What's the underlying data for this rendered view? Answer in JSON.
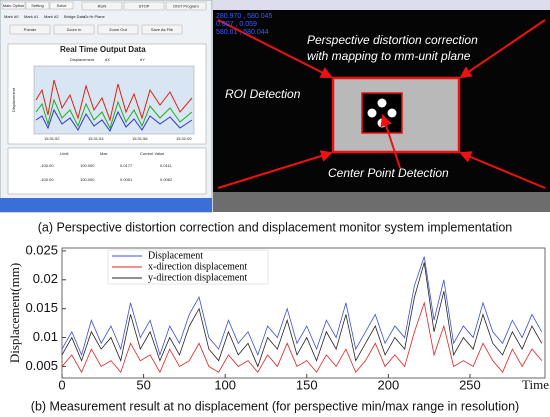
{
  "screenshot": {
    "tabs": [
      "Main Option",
      "Setting",
      "Solve"
    ],
    "buttons": [
      "RUN",
      "STOP",
      "DIST Program"
    ],
    "subtabs": [
      "Mark #0",
      "Mark #1",
      "Mark #2",
      "Bridge Data",
      "Gr.Hr.Plane"
    ],
    "tools": [
      "Pointer",
      "Zoom In",
      "Zoom Out",
      "Save As File"
    ],
    "mini_chart": {
      "title": "Real Time Output Data",
      "legend": [
        "Displacement",
        "dX",
        "dY"
      ],
      "ylabel": "Displacement",
      "times": [
        "15:31:52",
        "15:31:54",
        "15:31:56",
        "15:32:00"
      ]
    },
    "table": {
      "header": [
        "Limit",
        "Max",
        "Current Value"
      ],
      "rows": [
        [
          "-100.00",
          "100.000",
          "0.0177",
          "0.0111"
        ],
        [
          "-100.00",
          "100.000",
          "0.0051",
          "0.0062"
        ]
      ]
    },
    "overlay": [
      "280.970 , 580.045",
      "0.007 , 0.059",
      "580.01 , 580.044"
    ],
    "annotations": {
      "perspective_1": "Perspective distortion correction",
      "perspective_2": "with mapping to mm-unit plane",
      "roi": "ROI Detection",
      "center": "Center Point Detection"
    }
  },
  "caption_a": "(a) Perspective distortion correction and displacement monitor system implementation",
  "chart_data": {
    "type": "line",
    "caption": "(b) Measurement result at no displacement (for perspective min/max range in resolution)",
    "xlabel": "Time",
    "ylabel": "Displacement(mm)",
    "x": [
      0,
      6,
      12,
      18,
      24,
      30,
      36,
      42,
      48,
      54,
      60,
      66,
      72,
      78,
      84,
      90,
      96,
      102,
      108,
      114,
      120,
      126,
      132,
      138,
      144,
      150,
      156,
      162,
      168,
      174,
      180,
      186,
      192,
      198,
      204,
      210,
      216,
      222,
      228,
      234,
      240,
      246,
      252,
      258,
      264,
      270,
      276,
      282,
      288,
      294
    ],
    "series": [
      {
        "name": "Displacement",
        "color": "#3b4fd6",
        "values": [
          0.008,
          0.011,
          0.007,
          0.013,
          0.009,
          0.012,
          0.008,
          0.016,
          0.01,
          0.013,
          0.007,
          0.012,
          0.009,
          0.014,
          0.017,
          0.01,
          0.008,
          0.013,
          0.009,
          0.011,
          0.007,
          0.012,
          0.01,
          0.015,
          0.009,
          0.012,
          0.008,
          0.013,
          0.01,
          0.016,
          0.008,
          0.011,
          0.014,
          0.009,
          0.012,
          0.01,
          0.019,
          0.024,
          0.013,
          0.02,
          0.009,
          0.012,
          0.01,
          0.016,
          0.011,
          0.009,
          0.013,
          0.01,
          0.014,
          0.011
        ]
      },
      {
        "name": "x-direction displacement",
        "color": "#e02020",
        "values": [
          0.005,
          0.007,
          0.004,
          0.008,
          0.005,
          0.006,
          0.004,
          0.009,
          0.006,
          0.007,
          0.004,
          0.008,
          0.005,
          0.006,
          0.009,
          0.005,
          0.004,
          0.007,
          0.005,
          0.006,
          0.004,
          0.007,
          0.005,
          0.009,
          0.005,
          0.006,
          0.004,
          0.007,
          0.005,
          0.008,
          0.004,
          0.006,
          0.009,
          0.005,
          0.007,
          0.005,
          0.011,
          0.016,
          0.007,
          0.012,
          0.005,
          0.006,
          0.005,
          0.009,
          0.006,
          0.004,
          0.008,
          0.005,
          0.008,
          0.006
        ]
      },
      {
        "name": "y-direction displacement",
        "color": "#222222",
        "values": [
          0.007,
          0.01,
          0.006,
          0.011,
          0.008,
          0.01,
          0.006,
          0.014,
          0.008,
          0.011,
          0.006,
          0.01,
          0.007,
          0.012,
          0.015,
          0.008,
          0.006,
          0.011,
          0.007,
          0.009,
          0.005,
          0.01,
          0.008,
          0.013,
          0.007,
          0.01,
          0.006,
          0.011,
          0.008,
          0.014,
          0.006,
          0.009,
          0.012,
          0.007,
          0.01,
          0.008,
          0.017,
          0.023,
          0.011,
          0.018,
          0.007,
          0.01,
          0.008,
          0.014,
          0.009,
          0.007,
          0.011,
          0.008,
          0.012,
          0.009
        ]
      }
    ],
    "xlim": [
      0,
      296
    ],
    "xticks": [
      0,
      50,
      100,
      150,
      200,
      250
    ],
    "ylim": [
      0.003,
      0.0255
    ],
    "yticks": [
      0.005,
      0.01,
      0.015,
      0.02,
      0.025
    ],
    "legend": "upper left"
  }
}
